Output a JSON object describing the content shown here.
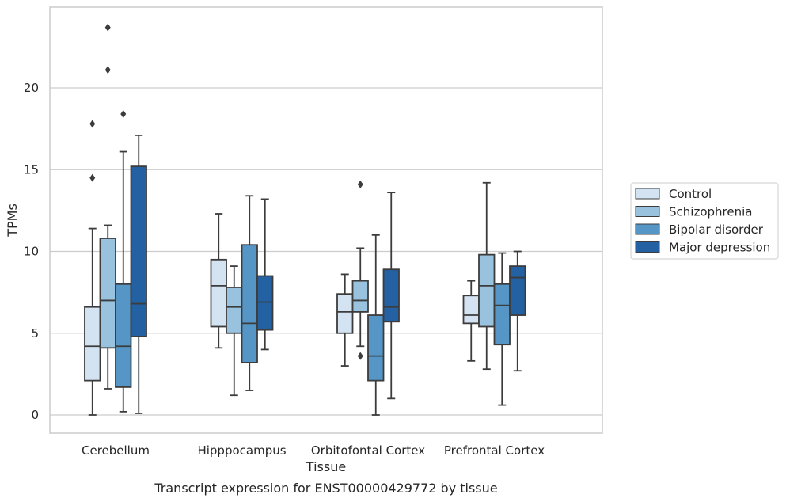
{
  "caption": "Transcript expression for ENST00000429772 by tissue",
  "chart_data": {
    "type": "box",
    "title": "",
    "xlabel": "Tissue",
    "ylabel": "TPMs",
    "ylim": [
      -1.1,
      24.9
    ],
    "yticks": [
      0,
      5,
      10,
      15,
      20
    ],
    "grid": "horizontal",
    "legend_position": "right",
    "categories": [
      "Cerebellum",
      "Hipppocampus",
      "Orbitofontal Cortex",
      "Prefrontal Cortex"
    ],
    "series": [
      {
        "name": "Control",
        "color": "#d4e3f2",
        "boxes": [
          {
            "whislo": 0.0,
            "q1": 2.1,
            "med": 4.2,
            "q3": 6.6,
            "whishi": 11.4,
            "fliers": [
              14.5,
              17.8
            ]
          },
          {
            "whislo": 4.1,
            "q1": 5.4,
            "med": 7.9,
            "q3": 9.5,
            "whishi": 12.3,
            "fliers": []
          },
          {
            "whislo": 3.0,
            "q1": 5.0,
            "med": 6.3,
            "q3": 7.4,
            "whishi": 8.6,
            "fliers": []
          },
          {
            "whislo": 3.3,
            "q1": 5.6,
            "med": 6.1,
            "q3": 7.3,
            "whishi": 8.2,
            "fliers": []
          }
        ]
      },
      {
        "name": "Schizophrenia",
        "color": "#99c2de",
        "boxes": [
          {
            "whislo": 1.6,
            "q1": 4.1,
            "med": 7.0,
            "q3": 10.8,
            "whishi": 11.6,
            "fliers": [
              21.1,
              23.7
            ]
          },
          {
            "whislo": 1.2,
            "q1": 5.0,
            "med": 6.6,
            "q3": 7.8,
            "whishi": 9.1,
            "fliers": []
          },
          {
            "whislo": 4.2,
            "q1": 6.3,
            "med": 7.0,
            "q3": 8.2,
            "whishi": 10.2,
            "fliers": [
              3.6,
              14.1
            ]
          },
          {
            "whislo": 2.8,
            "q1": 5.4,
            "med": 7.9,
            "q3": 9.8,
            "whishi": 14.2,
            "fliers": []
          }
        ]
      },
      {
        "name": "Bipolar disorder",
        "color": "#5596c6",
        "boxes": [
          {
            "whislo": 0.2,
            "q1": 1.7,
            "med": 4.2,
            "q3": 8.0,
            "whishi": 16.1,
            "fliers": [
              18.4
            ]
          },
          {
            "whislo": 1.5,
            "q1": 3.2,
            "med": 5.6,
            "q3": 10.4,
            "whishi": 13.4,
            "fliers": []
          },
          {
            "whislo": 0.0,
            "q1": 2.1,
            "med": 3.6,
            "q3": 6.1,
            "whishi": 11.0,
            "fliers": []
          },
          {
            "whislo": 0.6,
            "q1": 4.3,
            "med": 6.7,
            "q3": 8.0,
            "whishi": 9.9,
            "fliers": []
          }
        ]
      },
      {
        "name": "Major depression",
        "color": "#2361a2",
        "boxes": [
          {
            "whislo": 0.1,
            "q1": 4.8,
            "med": 6.8,
            "q3": 15.2,
            "whishi": 17.1,
            "fliers": []
          },
          {
            "whislo": 4.0,
            "q1": 5.2,
            "med": 6.9,
            "q3": 8.5,
            "whishi": 13.2,
            "fliers": []
          },
          {
            "whislo": 1.0,
            "q1": 5.7,
            "med": 6.6,
            "q3": 8.9,
            "whishi": 13.6,
            "fliers": []
          },
          {
            "whislo": 2.7,
            "q1": 6.1,
            "med": 8.4,
            "q3": 9.1,
            "whishi": 10.0,
            "fliers": []
          }
        ]
      }
    ]
  }
}
